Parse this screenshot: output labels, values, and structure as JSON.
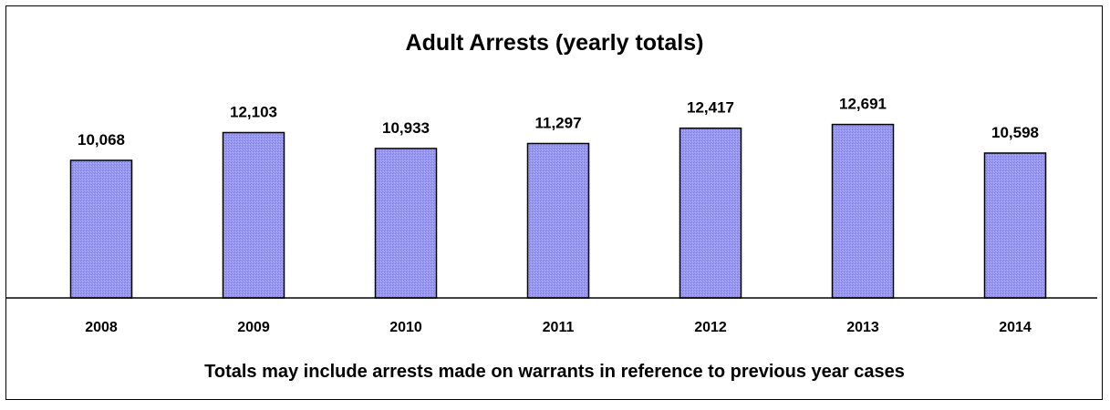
{
  "chart_data": {
    "type": "bar",
    "title": "Adult Arrests (yearly totals)",
    "categories": [
      "2008",
      "2009",
      "2010",
      "2011",
      "2012",
      "2013",
      "2014"
    ],
    "values": [
      10068,
      12103,
      10933,
      11297,
      12417,
      12691,
      10598
    ],
    "value_labels": [
      "10,068",
      "12,103",
      "10,933",
      "11,297",
      "12,417",
      "12,691",
      "10,598"
    ],
    "footnote": "Totals may include arrests made on warrants in reference to previous year cases",
    "xlabel": "",
    "ylabel": "",
    "ylim": [
      0,
      15000
    ],
    "grid": false,
    "legend": "none",
    "bar_color": "#9999ff",
    "bar_outline_color": "#000000"
  }
}
